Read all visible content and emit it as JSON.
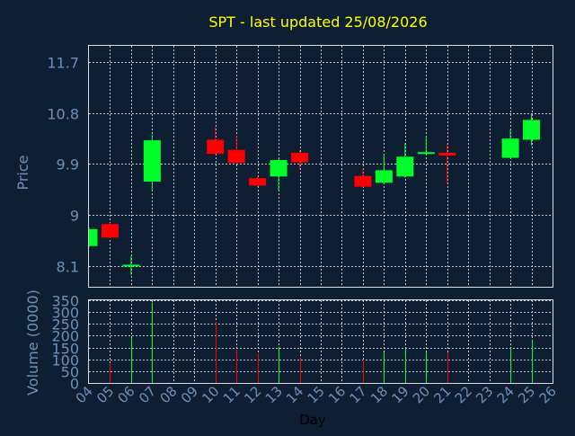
{
  "title": "SPT - last updated 25/08/2026",
  "colors": {
    "background": "#0f1f33",
    "plot_border": "#dddddd",
    "grid": "#c8c8c8",
    "axis_text": "#6f8fb8",
    "title_text": "#ffff00",
    "up": "#00ff2a",
    "down": "#ff0000",
    "xlabel_text": "#000000"
  },
  "chart_data": [
    {
      "type": "candlestick",
      "ylabel": "Price",
      "ylim": [
        7.73,
        11.99
      ],
      "yticks": [
        8.1,
        9,
        9.9,
        10.8,
        11.7
      ],
      "ytick_labels": [
        "8.1",
        "9",
        "9.9",
        "10.8",
        "11.7"
      ],
      "xlim": [
        4,
        26
      ],
      "grid": true,
      "candles": [
        {
          "day": 4,
          "open": 8.45,
          "close": 8.75,
          "high": 8.78,
          "low": 8.43
        },
        {
          "day": 5,
          "open": 8.84,
          "close": 8.6,
          "high": 8.86,
          "low": 8.58
        },
        {
          "day": 6,
          "open": 8.1,
          "close": 8.12,
          "high": 8.27,
          "low": 7.94
        },
        {
          "day": 7,
          "open": 9.59,
          "close": 10.32,
          "high": 10.42,
          "low": 9.42
        },
        {
          "day": 10,
          "open": 10.33,
          "close": 10.08,
          "high": 10.55,
          "low": 10.08
        },
        {
          "day": 11,
          "open": 10.15,
          "close": 9.92,
          "high": 10.4,
          "low": 9.92
        },
        {
          "day": 12,
          "open": 9.65,
          "close": 9.52,
          "high": 9.68,
          "low": 9.5
        },
        {
          "day": 13,
          "open": 9.68,
          "close": 9.97,
          "high": 9.99,
          "low": 9.43
        },
        {
          "day": 14,
          "open": 10.1,
          "close": 9.93,
          "high": 10.15,
          "low": 9.8
        },
        {
          "day": 17,
          "open": 9.69,
          "close": 9.5,
          "high": 9.83,
          "low": 9.48
        },
        {
          "day": 18,
          "open": 9.57,
          "close": 9.79,
          "high": 10.08,
          "low": 9.55
        },
        {
          "day": 19,
          "open": 9.68,
          "close": 10.03,
          "high": 10.27,
          "low": 9.66
        },
        {
          "day": 20,
          "open": 10.08,
          "close": 10.11,
          "high": 10.4,
          "low": 10.06
        },
        {
          "day": 21,
          "open": 10.1,
          "close": 10.05,
          "high": 10.27,
          "low": 9.55
        },
        {
          "day": 24,
          "open": 10.01,
          "close": 10.35,
          "high": 10.51,
          "low": 10.0
        },
        {
          "day": 25,
          "open": 10.33,
          "close": 10.68,
          "high": 10.79,
          "low": 10.23
        }
      ]
    },
    {
      "type": "bar",
      "ylabel": "Volume (0000)",
      "xlabel": "Day",
      "ylim": [
        0,
        350
      ],
      "yticks": [
        0,
        50,
        100,
        150,
        200,
        250,
        300,
        350
      ],
      "ytick_labels": [
        "0",
        "50",
        "100",
        "150",
        "200",
        "250",
        "300",
        "350"
      ],
      "xlim": [
        4,
        26
      ],
      "xticks": [
        "04",
        "05",
        "06",
        "07",
        "08",
        "09",
        "10",
        "11",
        "12",
        "13",
        "14",
        "15",
        "16",
        "17",
        "18",
        "19",
        "20",
        "21",
        "22",
        "23",
        "24",
        "25",
        "26"
      ],
      "grid": true,
      "bars": [
        {
          "day": 5,
          "value": 80,
          "direction": "down"
        },
        {
          "day": 6,
          "value": 190,
          "direction": "up"
        },
        {
          "day": 7,
          "value": 340,
          "direction": "up"
        },
        {
          "day": 10,
          "value": 260,
          "direction": "down"
        },
        {
          "day": 11,
          "value": 140,
          "direction": "down"
        },
        {
          "day": 12,
          "value": 125,
          "direction": "down"
        },
        {
          "day": 13,
          "value": 150,
          "direction": "up"
        },
        {
          "day": 14,
          "value": 110,
          "direction": "down"
        },
        {
          "day": 17,
          "value": 100,
          "direction": "down"
        },
        {
          "day": 18,
          "value": 130,
          "direction": "up"
        },
        {
          "day": 19,
          "value": 145,
          "direction": "up"
        },
        {
          "day": 20,
          "value": 130,
          "direction": "up"
        },
        {
          "day": 21,
          "value": 130,
          "direction": "down"
        },
        {
          "day": 24,
          "value": 150,
          "direction": "up"
        },
        {
          "day": 25,
          "value": 180,
          "direction": "up"
        }
      ]
    }
  ]
}
